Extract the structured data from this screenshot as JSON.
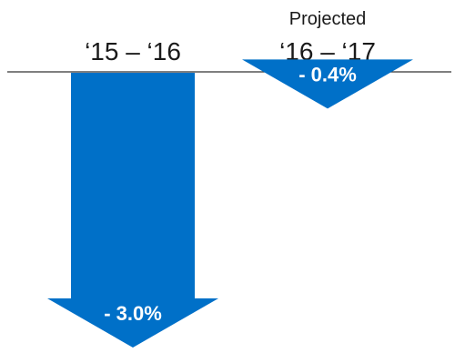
{
  "chart_data": {
    "type": "bar",
    "categories": [
      "‘15 – ‘16",
      "‘16 – ‘17"
    ],
    "category_notes": [
      "",
      "Projected"
    ],
    "values": [
      -3.0,
      -0.4
    ],
    "value_labels": [
      "- 3.0%",
      "- 0.4%"
    ],
    "unit": "%",
    "ylim": [
      -3.5,
      0
    ],
    "grid": false,
    "legend": "none",
    "bar_color": "#0070C8",
    "axis_color": "#333333"
  }
}
